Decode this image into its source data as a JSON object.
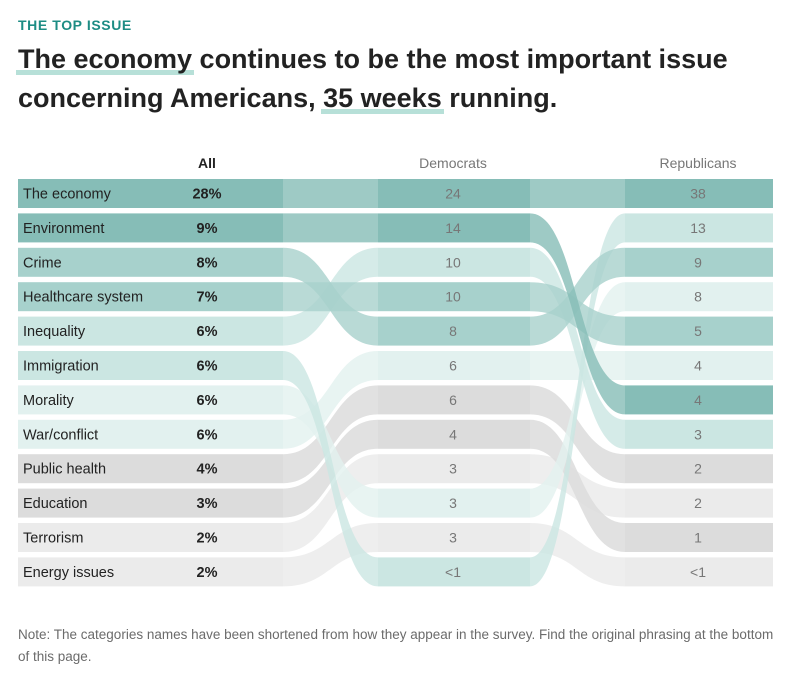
{
  "kicker": "THE TOP ISSUE",
  "headline": {
    "part1": "The economy",
    "part2": " continues to be the most important issue concerning Americans, ",
    "part3": "35 weeks",
    "part4": " running."
  },
  "note": "Note: The categories names have been shortened from how they appear in the survey. Find the original phrasing at the bottom of this page.",
  "colors": {
    "teal_dark": "#86bdb7",
    "teal_mid": "#a7d1cc",
    "teal_light": "#cbe6e2",
    "teal_pale": "#e2f1ef",
    "gray": "#dcdcdc",
    "gray_light": "#ebebeb",
    "accent": "#1d8c84"
  },
  "chart_data": {
    "type": "table",
    "columns": [
      "All",
      "Democrats",
      "Republicans"
    ],
    "rows": [
      {
        "label": "The economy",
        "all": "28%",
        "dem": "24",
        "rep": "38",
        "dem_rank": 0,
        "rep_rank": 0,
        "group": "teal_dark"
      },
      {
        "label": "Environment",
        "all": "9%",
        "dem": "14",
        "rep": "4",
        "dem_rank": 1,
        "rep_rank": 6,
        "group": "teal_dark"
      },
      {
        "label": "Crime",
        "all": "8%",
        "dem": "8",
        "rep": "9",
        "dem_rank": 4,
        "rep_rank": 2,
        "group": "teal_mid"
      },
      {
        "label": "Healthcare system",
        "all": "7%",
        "dem": "10",
        "rep": "5",
        "dem_rank": 3,
        "rep_rank": 4,
        "group": "teal_mid"
      },
      {
        "label": "Inequality",
        "all": "6%",
        "dem": "10",
        "rep": "3",
        "dem_rank": 2,
        "rep_rank": 7,
        "group": "teal_light"
      },
      {
        "label": "Immigration",
        "all": "6%",
        "dem": "<1",
        "rep": "13",
        "dem_rank": 11,
        "rep_rank": 1,
        "group": "teal_light"
      },
      {
        "label": "Morality",
        "all": "6%",
        "dem": "3",
        "rep": "8",
        "dem_rank": 9,
        "rep_rank": 3,
        "group": "teal_pale"
      },
      {
        "label": "War/conflict",
        "all": "6%",
        "dem": "6",
        "rep": "4",
        "dem_rank": 5,
        "rep_rank": 5,
        "group": "teal_pale"
      },
      {
        "label": "Public health",
        "all": "4%",
        "dem": "6",
        "rep": "2",
        "dem_rank": 6,
        "rep_rank": 8,
        "group": "gray"
      },
      {
        "label": "Education",
        "all": "3%",
        "dem": "4",
        "rep": "1",
        "dem_rank": 7,
        "rep_rank": 10,
        "group": "gray"
      },
      {
        "label": "Terrorism",
        "all": "2%",
        "dem": "3",
        "rep": "2",
        "dem_rank": 8,
        "rep_rank": 9,
        "group": "gray_light"
      },
      {
        "label": "Energy issues",
        "all": "2%",
        "dem": "3",
        "rep": "<1",
        "dem_rank": 10,
        "rep_rank": 11,
        "group": "gray_light"
      }
    ]
  }
}
